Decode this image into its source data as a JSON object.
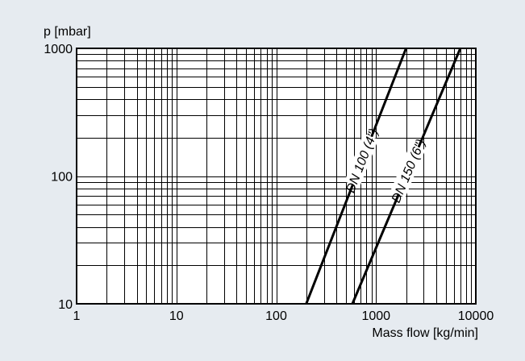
{
  "chart_data": {
    "type": "line",
    "title": "",
    "xlabel": "Mass flow [kg/min]",
    "ylabel": "p [mbar]",
    "x_scale": "log",
    "y_scale": "log",
    "xlim": [
      1,
      10000
    ],
    "ylim": [
      10,
      1000
    ],
    "x_ticks": [
      "1",
      "10",
      "100",
      "1000",
      "10000"
    ],
    "y_ticks": [
      "10",
      "100",
      "1000"
    ],
    "grid": true,
    "series": [
      {
        "name": "DN 100 (4\")",
        "points": [
          [
            200,
            10
          ],
          [
            2000,
            1000
          ]
        ]
      },
      {
        "name": "DN 150 (6\")",
        "points": [
          [
            580,
            10
          ],
          [
            7000,
            1000
          ]
        ]
      }
    ]
  }
}
